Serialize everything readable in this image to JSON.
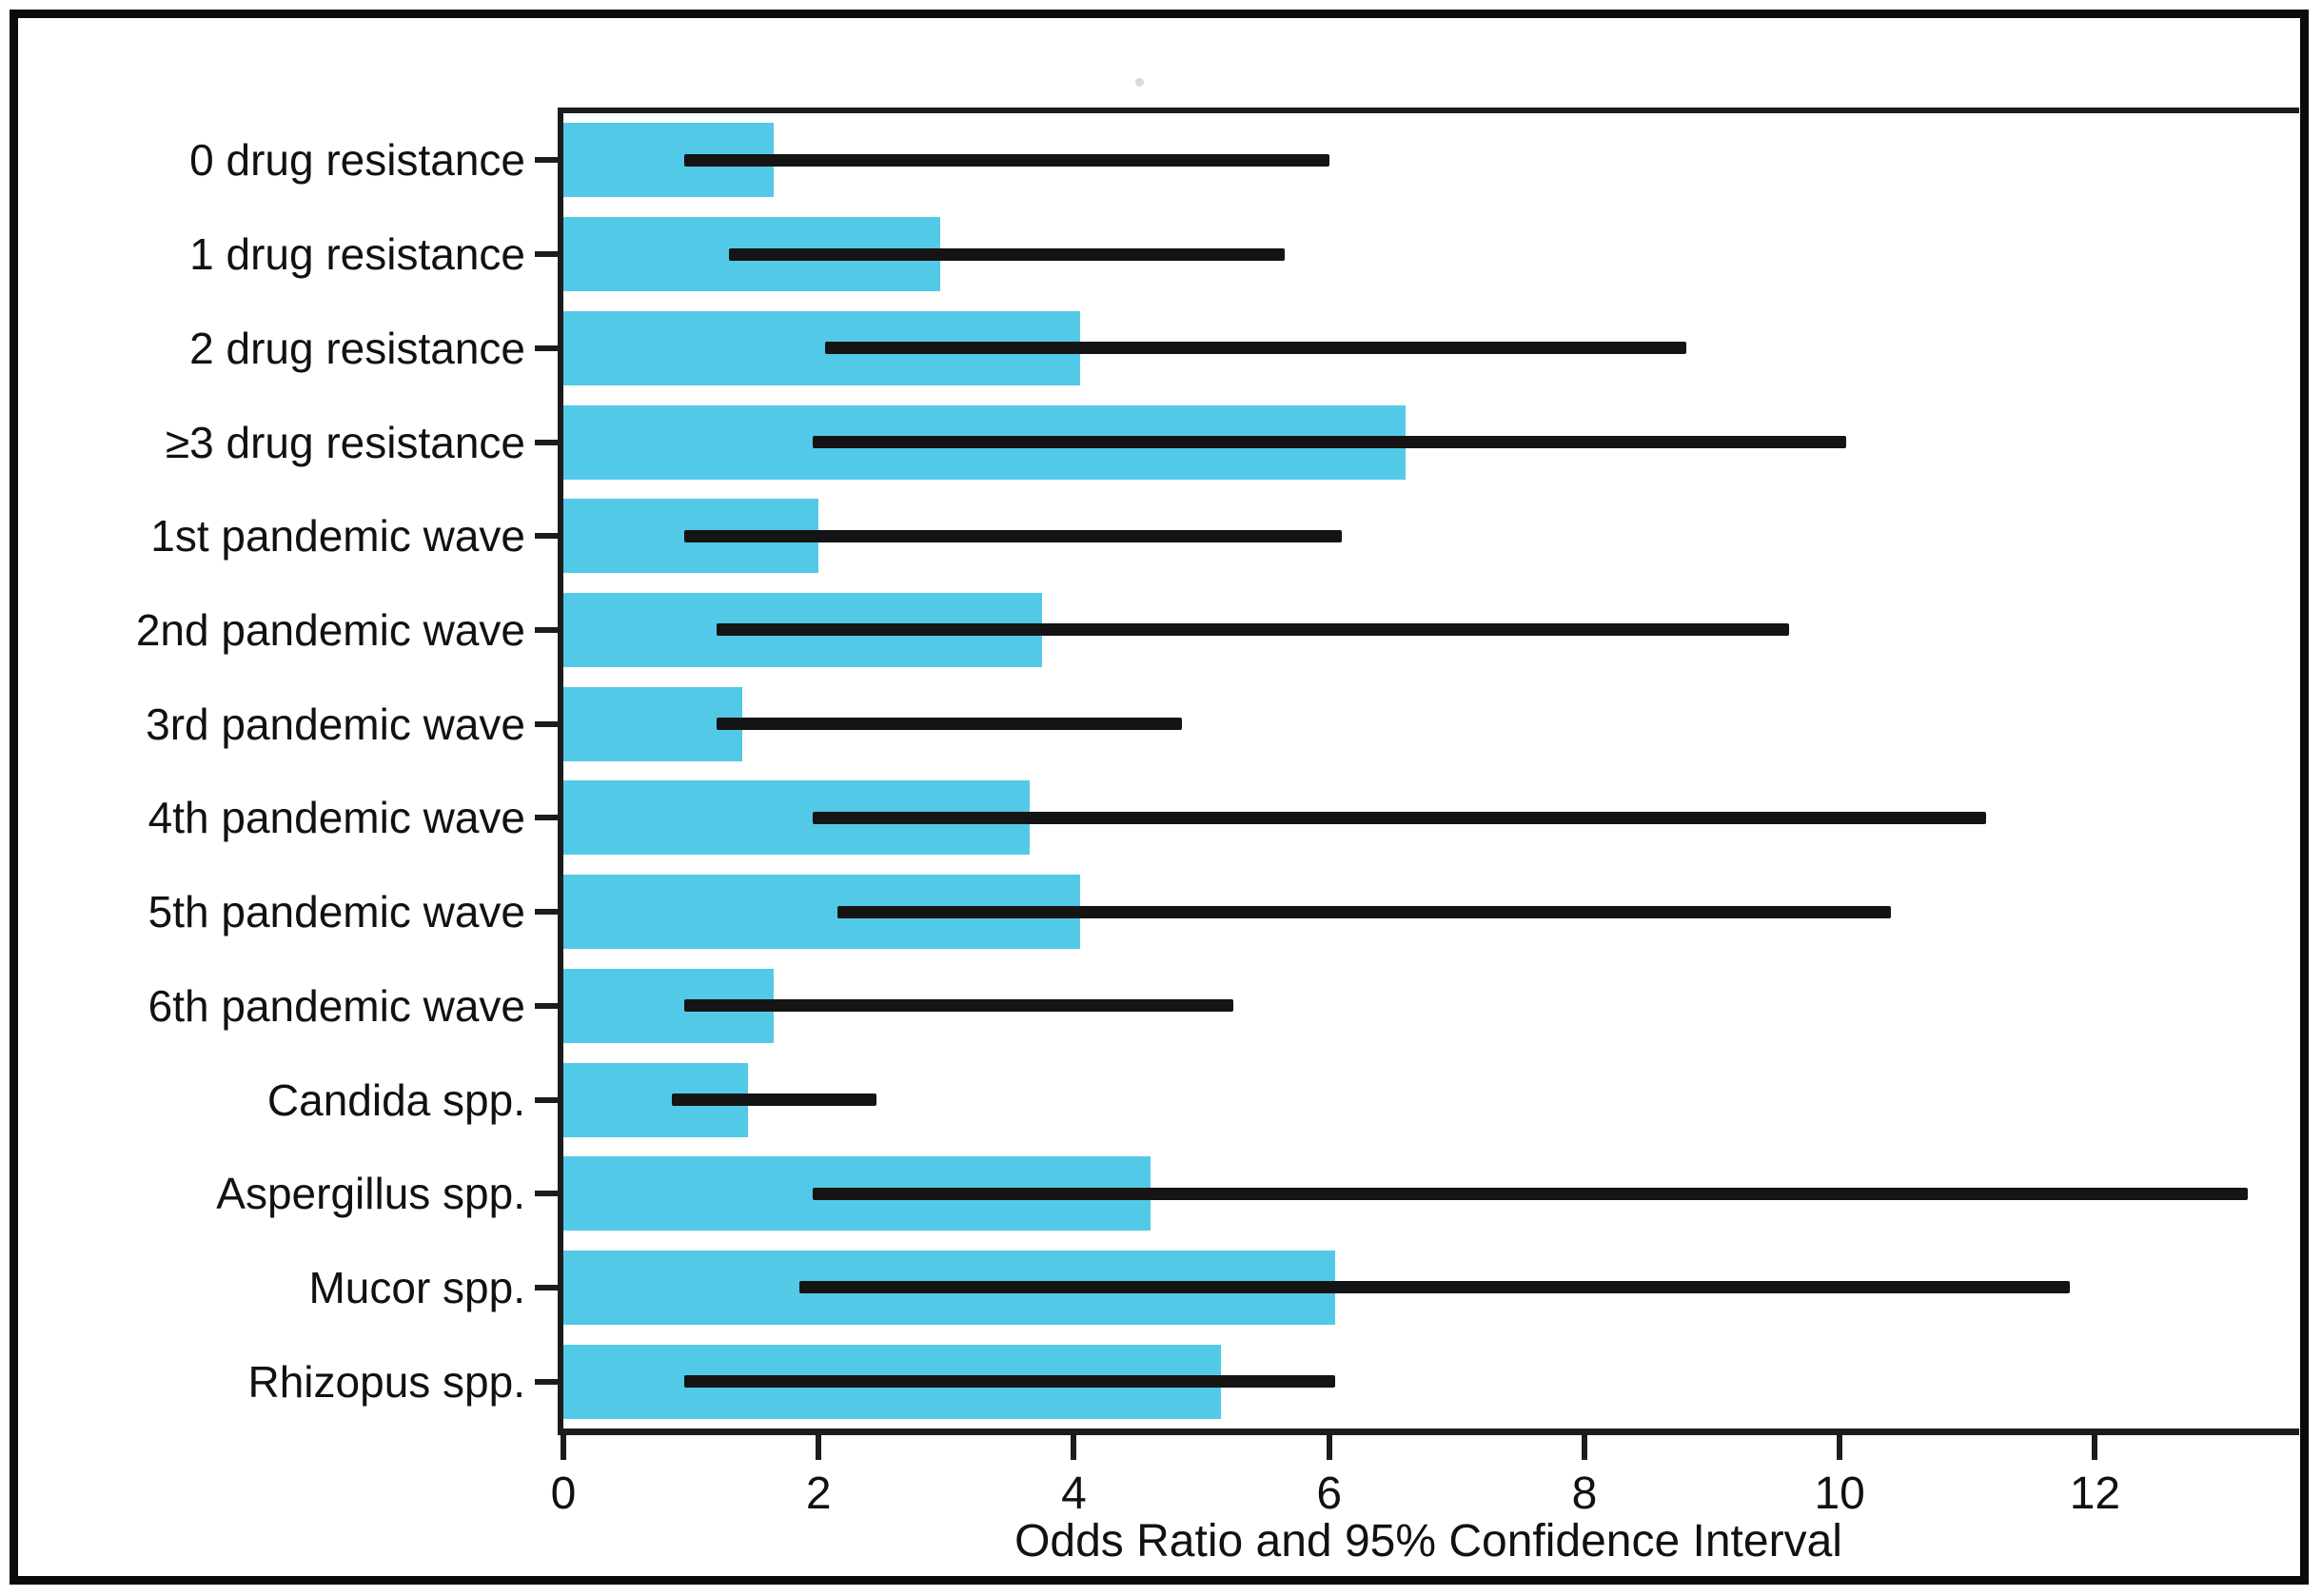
{
  "figure": {
    "background": "#ffffff",
    "border_color": "#0a0a0a"
  },
  "chart_data": {
    "type": "bar",
    "orientation": "horizontal",
    "title": "",
    "xlabel": "Odds Ratio and 95% Confidence Interval",
    "ylabel": "",
    "xlim": [
      0,
      13.6
    ],
    "xticks": [
      0,
      2,
      4,
      6,
      8,
      10,
      12
    ],
    "grid": false,
    "legend": "none",
    "bar_color": "#53C9E8",
    "error_bar_color": "#141414",
    "axis_color": "#1c1c1c",
    "categories": [
      "0 drug resistance",
      "1 drug resistance",
      "2 drug resistance",
      "≥3 drug resistance",
      "1st pandemic wave",
      "2nd pandemic wave",
      "3rd pandemic wave",
      "4th pandemic wave",
      "5th pandemic wave",
      "6th pandemic wave",
      "Candida spp.",
      "Aspergillus spp.",
      "Mucor spp.",
      "Rhizopus spp."
    ],
    "series": [
      {
        "name": "Odds Ratio",
        "values": [
          1.65,
          2.95,
          4.05,
          6.6,
          2.0,
          3.75,
          1.4,
          3.65,
          4.05,
          1.65,
          1.45,
          4.6,
          6.05,
          5.15
        ],
        "ci_low": [
          0.95,
          1.3,
          2.05,
          1.95,
          0.95,
          1.2,
          1.2,
          1.95,
          2.15,
          0.95,
          0.85,
          1.95,
          1.85,
          0.95
        ],
        "ci_high": [
          6.0,
          5.65,
          8.8,
          10.05,
          6.1,
          9.6,
          4.85,
          11.15,
          10.4,
          5.25,
          2.45,
          13.2,
          11.8,
          6.05
        ]
      }
    ]
  }
}
